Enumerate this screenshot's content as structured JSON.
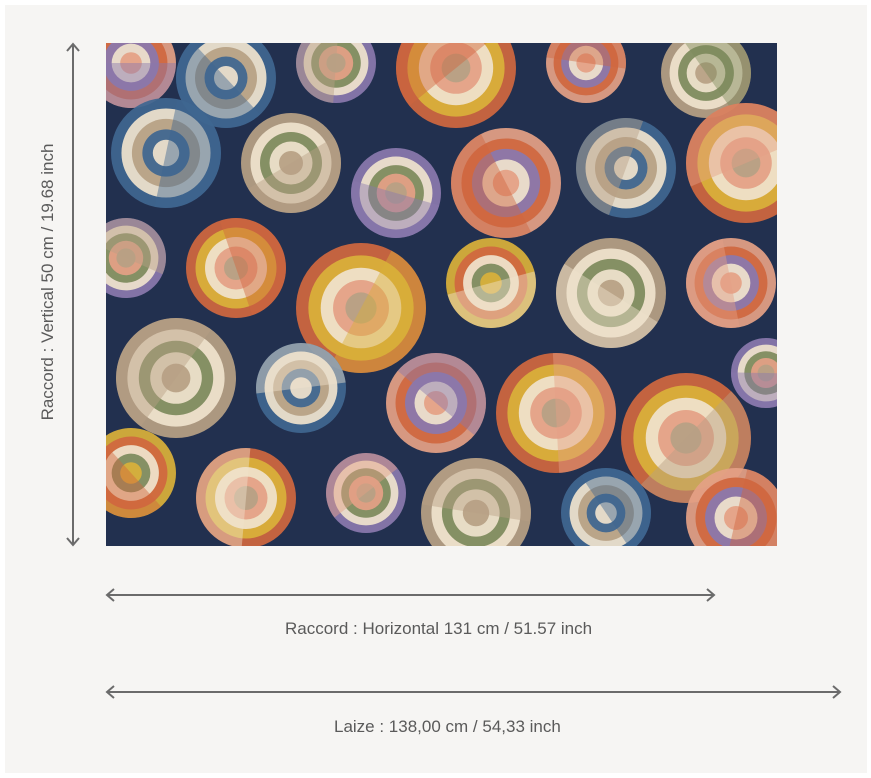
{
  "repeat": {
    "vertical_label": "Raccord : Vertical 50 cm / 19.68 inch",
    "horizontal_label": "Raccord : Horizontal 131 cm / 51.57 inch"
  },
  "width": {
    "label": "Laize : 138,00 cm / 54,33 inch"
  },
  "pattern": {
    "colors": [
      "#d0673f",
      "#e4a085",
      "#d9b03a",
      "#3f6690",
      "#7d8a5c",
      "#b7a084",
      "#8a78ad",
      "#efe2cc",
      "#22304f"
    ]
  }
}
